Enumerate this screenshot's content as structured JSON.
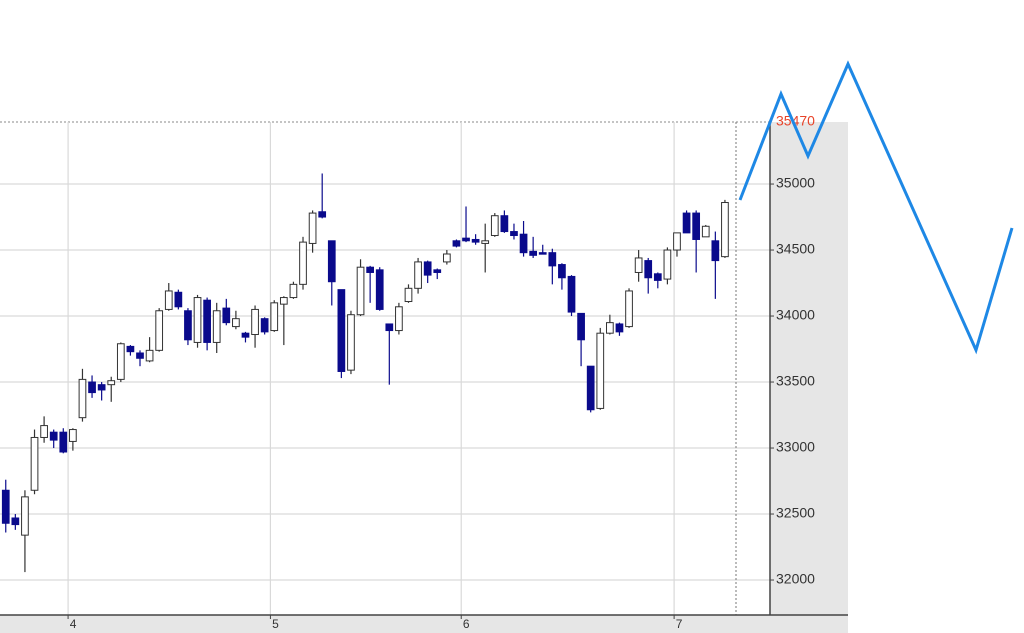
{
  "chart_data": {
    "type": "candlestick",
    "last_price_label": "35470",
    "open": [
      32680,
      32470,
      32340,
      32680,
      33080,
      33120,
      33120,
      33050,
      33230,
      33500,
      33480,
      33480,
      33520,
      33770,
      33720,
      33660,
      33740,
      34050,
      34180,
      34040,
      33800,
      34120,
      33800,
      34060,
      33920,
      33870,
      33860,
      33980,
      33890,
      34090,
      34140,
      34240,
      34550,
      34790,
      34570,
      34200,
      33590,
      34010,
      34370,
      34350,
      33940,
      33890,
      34110,
      34210,
      34410,
      34350,
      34410,
      34570,
      34590,
      34580,
      34550,
      34610,
      34760,
      34640,
      34620,
      34490,
      34480,
      34480,
      34390,
      34300,
      34020,
      33620,
      33300,
      33870,
      33940,
      33920,
      34330,
      34420,
      34320,
      34280,
      34500,
      34780,
      34780,
      34600,
      34570,
      34450
    ],
    "high": [
      32760,
      32500,
      32680,
      33140,
      33240,
      33140,
      33150,
      33150,
      33600,
      33550,
      33500,
      33540,
      33800,
      33780,
      33740,
      33840,
      34060,
      34250,
      34200,
      34060,
      34160,
      34140,
      34100,
      34130,
      34040,
      33880,
      34080,
      33990,
      34120,
      34150,
      34260,
      34600,
      34800,
      35080,
      34570,
      34200,
      34040,
      34430,
      34380,
      34370,
      33940,
      34100,
      34240,
      34440,
      34420,
      34360,
      34500,
      34580,
      34830,
      34620,
      34700,
      34780,
      34800,
      34700,
      34720,
      34600,
      34540,
      34510,
      34400,
      34310,
      34020,
      33620,
      33910,
      34010,
      33950,
      34210,
      34500,
      34440,
      34330,
      34520,
      34630,
      34800,
      34800,
      34690,
      34640,
      34880
    ],
    "low": [
      32360,
      32380,
      32060,
      32650,
      33040,
      33000,
      32960,
      32980,
      33200,
      33380,
      33360,
      33350,
      33500,
      33700,
      33620,
      33650,
      33730,
      34040,
      34050,
      33780,
      33760,
      33740,
      33720,
      33930,
      33900,
      33800,
      33760,
      33860,
      33880,
      33780,
      34130,
      34200,
      34480,
      34740,
      34080,
      33530,
      33560,
      34000,
      34100,
      34040,
      33480,
      33860,
      34100,
      34170,
      34250,
      34280,
      34390,
      34520,
      34560,
      34540,
      34330,
      34600,
      34630,
      34580,
      34450,
      34440,
      34470,
      34240,
      34200,
      34000,
      33620,
      33270,
      33290,
      33860,
      33850,
      33910,
      34260,
      34170,
      34210,
      34240,
      34450,
      34630,
      34330,
      34600,
      34130,
      34440
    ],
    "close": [
      32430,
      32420,
      32630,
      33080,
      33170,
      33060,
      32970,
      33140,
      33520,
      33420,
      33440,
      33510,
      33790,
      33730,
      33680,
      33740,
      34040,
      34190,
      34070,
      33820,
      34140,
      33800,
      34040,
      33950,
      33980,
      33840,
      34050,
      33880,
      34100,
      34140,
      34240,
      34560,
      34780,
      34750,
      34260,
      33580,
      34010,
      34370,
      34330,
      34050,
      33890,
      34070,
      34210,
      34410,
      34310,
      34330,
      34470,
      34530,
      34570,
      34560,
      34570,
      34760,
      34640,
      34610,
      34480,
      34460,
      34470,
      34380,
      34290,
      34030,
      33820,
      33290,
      33870,
      33950,
      33880,
      34190,
      34440,
      34290,
      34270,
      34500,
      34630,
      34630,
      34580,
      34680,
      34420,
      34860
    ],
    "up_color": "#ffffff",
    "down_color": "#0a0a8c",
    "edge_color": "#333333",
    "ylim": [
      31735,
      35470
    ],
    "yticks": [
      32000,
      32500,
      33000,
      33500,
      34000,
      34500,
      35000
    ],
    "xlim": [
      -0.6,
      79.7
    ],
    "xticks": [
      {
        "value": 6.5,
        "label": "4"
      },
      {
        "value": 27.6,
        "label": "5"
      },
      {
        "value": 47.5,
        "label": "6"
      },
      {
        "value": 69.7,
        "label": "7"
      }
    ],
    "grid": true,
    "y_axis_side": "right"
  }
}
